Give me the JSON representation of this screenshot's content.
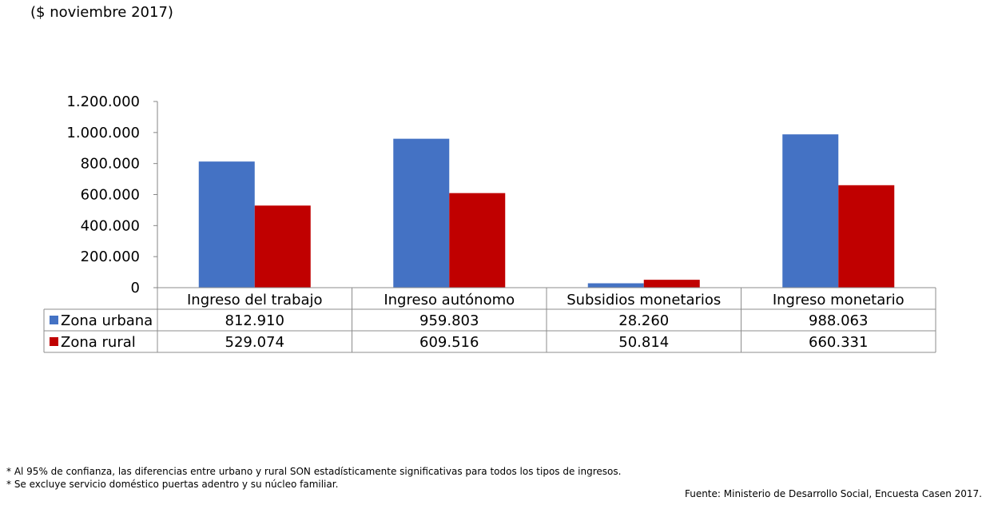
{
  "subtitle": "($ noviembre 2017)",
  "chart_data": {
    "type": "bar",
    "categories": [
      "Ingreso del trabajo",
      "Ingreso autónomo",
      "Subsidios monetarios",
      "Ingreso monetario"
    ],
    "series": [
      {
        "name": "Zona urbana",
        "color": "#4472C4",
        "values": [
          812910,
          959803,
          28260,
          988063
        ],
        "labels": [
          "812.910",
          "959.803",
          "28.260",
          "988.063"
        ]
      },
      {
        "name": "Zona rural",
        "color": "#C00000",
        "values": [
          529074,
          609516,
          50814,
          660331
        ],
        "labels": [
          "529.074",
          "609.516",
          "50.814",
          "660.331"
        ]
      }
    ],
    "ylim": [
      0,
      1200000
    ],
    "yticks": [
      "0",
      "200.000",
      "400.000",
      "600.000",
      "800.000",
      "1.000.000",
      "1.200.000"
    ],
    "grid": false,
    "legend": "data table"
  },
  "footnotes": [
    "* Al 95% de confianza, las diferencias entre urbano y rural SON estadísticamente significativas para todos los tipos de ingresos.",
    "* Se excluye servicio doméstico puertas adentro y su núcleo familiar."
  ],
  "source": "Fuente: Ministerio de Desarrollo Social, Encuesta Casen 2017."
}
